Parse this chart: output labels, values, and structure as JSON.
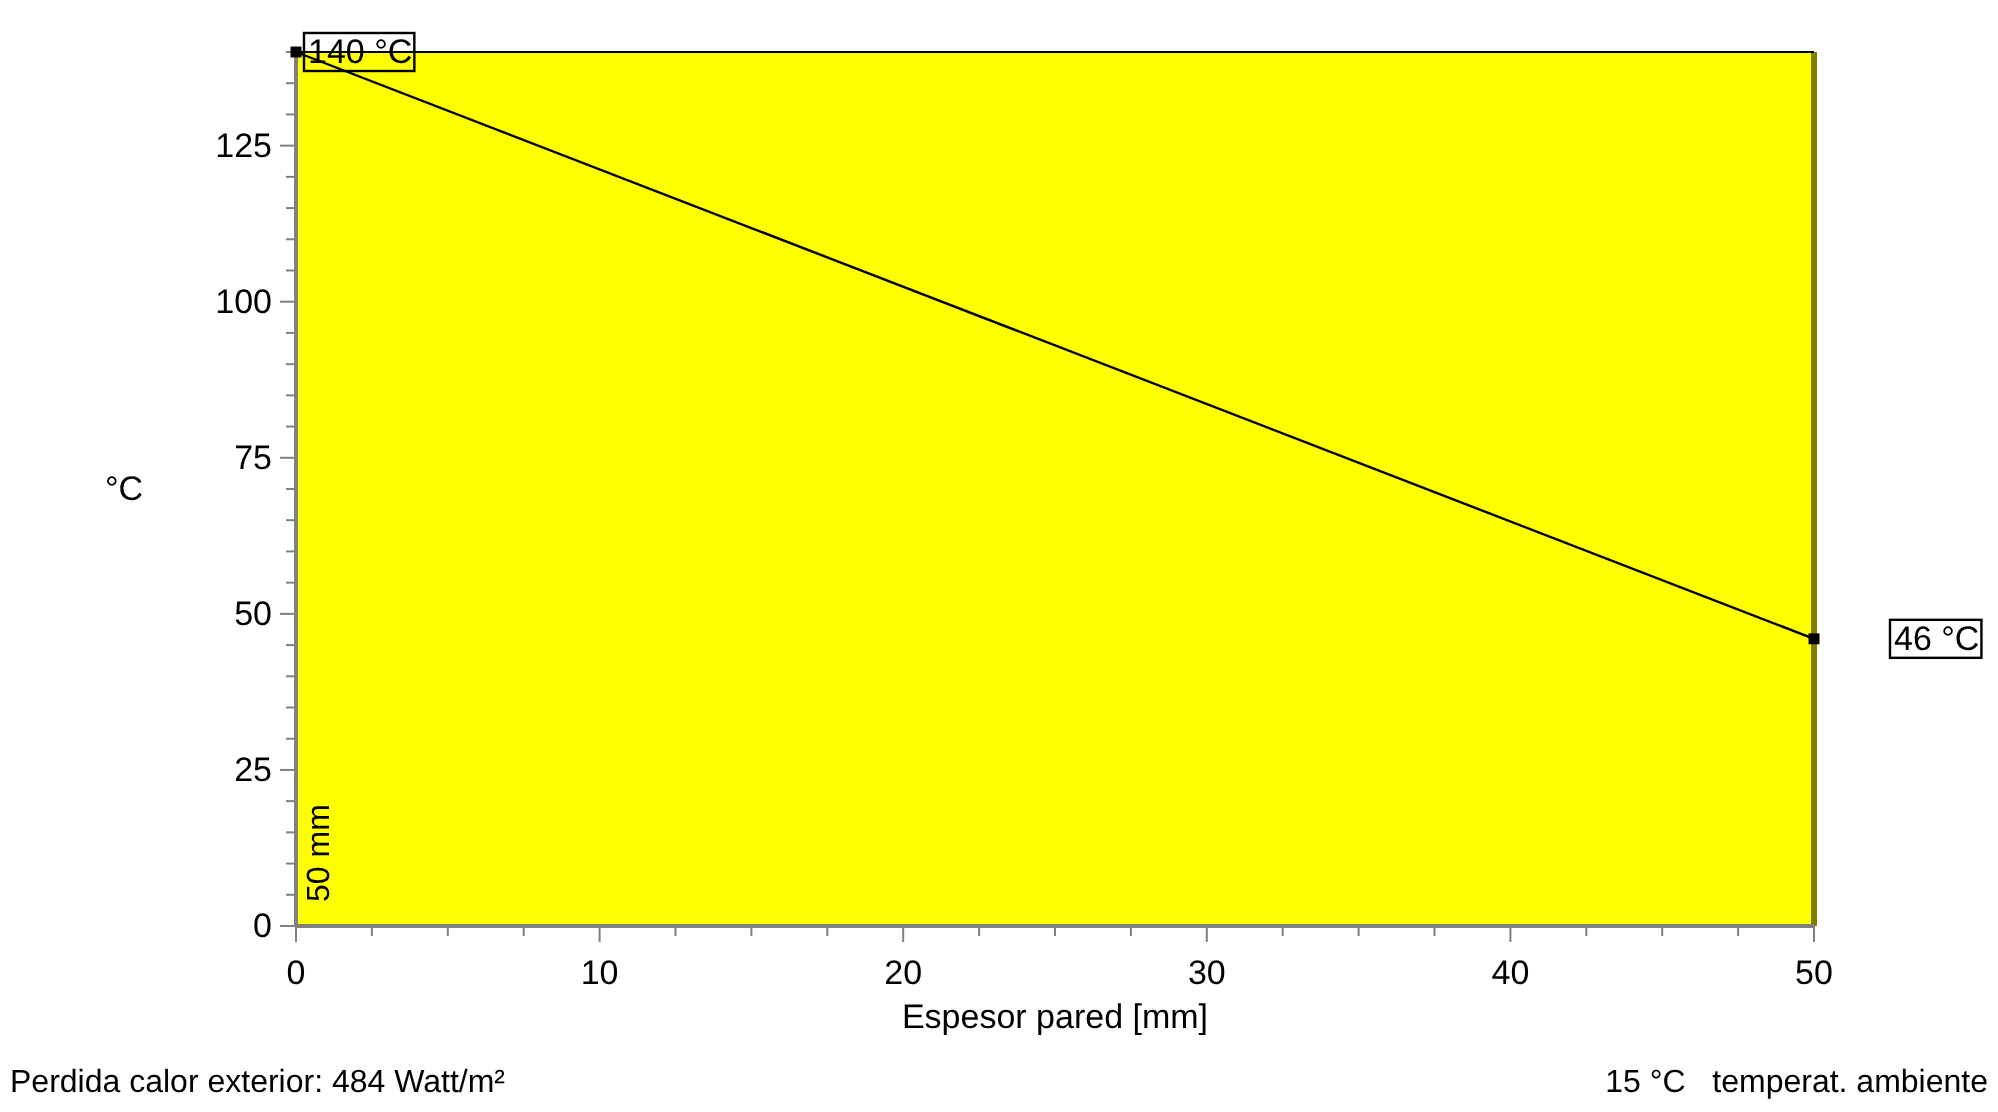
{
  "chart_data": {
    "type": "line",
    "xlabel": "Espesor pared [mm]",
    "ylabel": "°C",
    "x": [
      0,
      50
    ],
    "series": [
      {
        "color": "#000000",
        "values": [
          140,
          46
        ]
      }
    ],
    "marker": "square",
    "line_style": "solid",
    "grid": false,
    "xlim": [
      0,
      50
    ],
    "ylim": [
      0,
      140
    ],
    "xticks": [
      0,
      {
        "value": 2.5,
        "label": null
      },
      {
        "value": 5,
        "label": null
      },
      {
        "value": 7.5,
        "label": null
      },
      10,
      {
        "value": 12.5,
        "label": null
      },
      {
        "value": 15,
        "label": null
      },
      {
        "value": 17.5,
        "label": null
      },
      20,
      {
        "value": 22.5,
        "label": null
      },
      {
        "value": 25,
        "label": null
      },
      {
        "value": 27.5,
        "label": null
      },
      30,
      {
        "value": 32.5,
        "label": null
      },
      {
        "value": 35,
        "label": null
      },
      {
        "value": 37.5,
        "label": null
      },
      40,
      {
        "value": 42.5,
        "label": null
      },
      {
        "value": 45,
        "label": null
      },
      {
        "value": 47.5,
        "label": null
      },
      50
    ],
    "yticks": [
      0,
      {
        "value": 5,
        "label": null
      },
      {
        "value": 10,
        "label": null
      },
      {
        "value": 15,
        "label": null
      },
      {
        "value": 20,
        "label": null
      },
      25,
      {
        "value": 30,
        "label": null
      },
      {
        "value": 35,
        "label": null
      },
      {
        "value": 40,
        "label": null
      },
      {
        "value": 45,
        "label": null
      },
      50,
      {
        "value": 55,
        "label": null
      },
      {
        "value": 60,
        "label": null
      },
      {
        "value": 65,
        "label": null
      },
      {
        "value": 70,
        "label": null
      },
      75,
      {
        "value": 80,
        "label": null
      },
      {
        "value": 85,
        "label": null
      },
      {
        "value": 90,
        "label": null
      },
      {
        "value": 95,
        "label": null
      },
      100,
      {
        "value": 105,
        "label": null
      },
      {
        "value": 110,
        "label": null
      },
      {
        "value": 115,
        "label": null
      },
      {
        "value": 120,
        "label": null
      },
      125,
      {
        "value": 130,
        "label": null
      },
      {
        "value": 135,
        "label": null
      },
      {
        "value": 140,
        "label": null
      }
    ],
    "bands": [
      {
        "axis": "x",
        "from": 0,
        "to": 50,
        "label": "50 mm",
        "color": "#ffff00"
      }
    ],
    "annotations": [
      {
        "text": "140 °C",
        "x": 0,
        "y": 140
      },
      {
        "text": "46 °C",
        "x": 50,
        "y": 46
      },
      "Perdida calor exterior: 484 Watt/m²",
      "15 °C   temperat. ambiente"
    ]
  }
}
